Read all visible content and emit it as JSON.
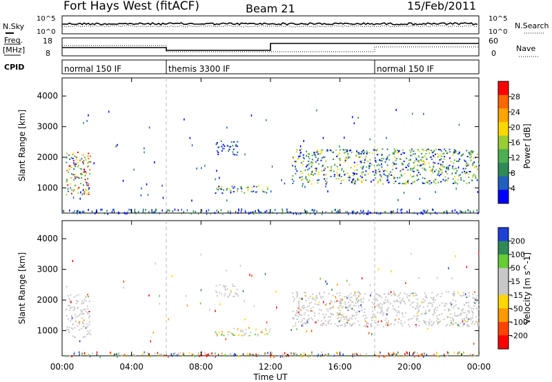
{
  "header": {
    "station": "Fort Hays West (fitACF)",
    "beam": "Beam 21",
    "date": "15/Feb/2011"
  },
  "left_labels": {
    "nsky": "N.Sky",
    "freq_line1": "Freq.",
    "freq_line2": "[MHz]",
    "cpid": "CPID"
  },
  "right_labels": {
    "nsearch": "N.Search",
    "nave": "Nave"
  },
  "panel_axis_labels": {
    "noise_top": "10^5",
    "noise_bottom": "10^0",
    "noise_right_top": "10^5",
    "noise_right_bottom": "10^0",
    "freq_top": "18",
    "freq_bottom": "8",
    "nave_top": "60",
    "nave_bottom": "0"
  },
  "cpid_segments": [
    {
      "label": "normal 150 IF",
      "start_h": 0
    },
    {
      "label": "themis 3300 IF",
      "start_h": 6
    },
    {
      "label": "normal 150 IF",
      "start_h": 18
    }
  ],
  "colors": {
    "power_scale": [
      "#0000ff",
      "#1f5fbf",
      "#2e8b57",
      "#4caf50",
      "#9acd32",
      "#ffd700",
      "#ffa500",
      "#ff6600",
      "#ff0000"
    ],
    "velocity_scale": [
      "#1e3fd8",
      "#2e8b57",
      "#66cc33",
      "#c8c8c8",
      "#c8c8c8",
      "#ffd700",
      "#ff9900",
      "#ff4400",
      "#ff0000"
    ]
  },
  "chart_data": [
    {
      "type": "heatmap",
      "panel": "power",
      "ylabel": "Slant Range [km]",
      "yticks": [
        1000,
        2000,
        3000,
        4000
      ],
      "xlabel": "Time UT",
      "xticks": [
        "00:00",
        "04:00",
        "08:00",
        "12:00",
        "16:00",
        "20:00",
        "00:00"
      ],
      "xlim_hours": [
        0,
        24
      ],
      "ylim_km": [
        180,
        4590
      ],
      "colorbar": {
        "label": "Power [dB]",
        "ticks": [
          "4",
          "8",
          "12",
          "16",
          "20",
          "24",
          "28"
        ],
        "range": [
          0,
          30
        ]
      },
      "regions": [
        {
          "t0": 0.2,
          "t1": 1.6,
          "r0": 800,
          "r1": 2200,
          "level": "high"
        },
        {
          "t0": 8.8,
          "t1": 12.0,
          "r0": 850,
          "r1": 1100,
          "level": "mid"
        },
        {
          "t0": 8.8,
          "t1": 10.1,
          "r0": 2100,
          "r1": 2550,
          "level": "low"
        },
        {
          "t0": 13.2,
          "t1": 24.0,
          "r0": 1150,
          "r1": 2300,
          "level": "mid"
        }
      ]
    },
    {
      "type": "heatmap",
      "panel": "velocity",
      "ylabel": "Slant Range [km]",
      "yticks": [
        1000,
        2000,
        3000,
        4000
      ],
      "xlabel": "Time UT",
      "xticks": [
        "00:00",
        "04:00",
        "08:00",
        "12:00",
        "16:00",
        "20:00",
        "00:00"
      ],
      "xlim_hours": [
        0,
        24
      ],
      "ylim_km": [
        180,
        4590
      ],
      "colorbar": {
        "label": "Velocity [m s^-1]",
        "ticks": [
          "200",
          "100",
          "50",
          "15",
          "-15",
          "-50",
          "-100",
          "-200"
        ],
        "range": [
          -250,
          250
        ]
      },
      "regions": [
        {
          "t0": 0.2,
          "t1": 1.6,
          "r0": 800,
          "r1": 2200,
          "level": "ground"
        },
        {
          "t0": 8.8,
          "t1": 12.0,
          "r0": 850,
          "r1": 1100,
          "level": "mixed"
        },
        {
          "t0": 8.8,
          "t1": 10.1,
          "r0": 2100,
          "r1": 2550,
          "level": "ground"
        },
        {
          "t0": 13.2,
          "t1": 24.0,
          "r0": 1150,
          "r1": 2300,
          "level": "ground"
        }
      ]
    }
  ]
}
